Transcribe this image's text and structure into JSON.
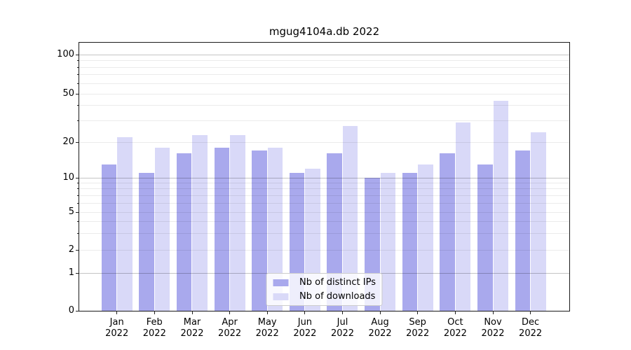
{
  "chart_data": {
    "type": "bar",
    "title": "mgug4104a.db 2022",
    "xlabel": "",
    "ylabel": "",
    "categories": [
      "Jan 2022",
      "Feb 2022",
      "Mar 2022",
      "Apr 2022",
      "May 2022",
      "Jun 2022",
      "Jul 2022",
      "Aug 2022",
      "Sep 2022",
      "Oct 2022",
      "Nov 2022",
      "Dec 2022"
    ],
    "x_tick_months": [
      "Jan",
      "Feb",
      "Mar",
      "Apr",
      "May",
      "Jun",
      "Jul",
      "Aug",
      "Sep",
      "Oct",
      "Nov",
      "Dec"
    ],
    "x_tick_year": "2022",
    "series": [
      {
        "name": "Nb of distinct IPs",
        "color": "#a9a9ed",
        "values": [
          13,
          11,
          16,
          18,
          17,
          11,
          16,
          10,
          11,
          16,
          13,
          17
        ]
      },
      {
        "name": "Nb of downloads",
        "color": "#d9d9f8",
        "values": [
          22,
          18,
          23,
          23,
          18,
          12,
          27,
          11,
          13,
          29,
          44,
          24
        ]
      }
    ],
    "y_axis": {
      "scale": "log-like with linear segment to 0",
      "tick_labels": [
        "100",
        "50",
        "20",
        "10",
        "5",
        "2",
        "1",
        "0"
      ],
      "tick_values": [
        100,
        50,
        20,
        10,
        5,
        2,
        1,
        0
      ],
      "major_grid_values": [
        1,
        10,
        100
      ],
      "minor_grid_values": [
        2,
        5,
        20,
        50,
        3,
        4,
        6,
        7,
        8,
        9,
        30,
        40,
        60,
        70,
        80,
        90
      ],
      "anchors": [
        {
          "v": 0,
          "f": 0.0
        },
        {
          "v": 1,
          "f": 0.141
        },
        {
          "v": 2,
          "f": 0.2272
        },
        {
          "v": 5,
          "f": 0.3681
        },
        {
          "v": 10,
          "f": 0.4961
        },
        {
          "v": 20,
          "f": 0.6293
        },
        {
          "v": 50,
          "f": 0.8094
        },
        {
          "v": 100,
          "f": 0.9556
        }
      ]
    },
    "grid": true,
    "legend_position": "lower center"
  }
}
